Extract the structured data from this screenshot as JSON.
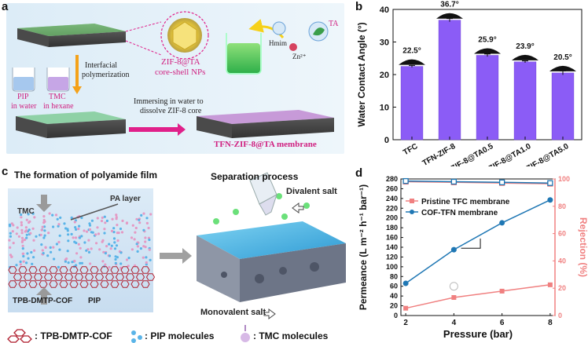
{
  "panel_a": {
    "label": "a",
    "nps_label_line1": "ZIF-8@TA",
    "nps_label_line2": "core-shell NPs",
    "hmim": "Hmim",
    "zn": "Zn²⁺",
    "ta": "TA",
    "interfacial_line1": "Interfacial",
    "interfacial_line2": "polymerization",
    "pip_line1": "PIP",
    "pip_line2": "in water",
    "tmc_line1": "TMC",
    "tmc_line2": "in hexane",
    "immersing_line1": "Immersing in water to",
    "immersing_line2": "dissolve ZIF-8 core",
    "membrane_label": "TFN-ZIF-8@TA membrane"
  },
  "panel_b": {
    "label": "b",
    "chart_data": {
      "type": "bar",
      "categories": [
        "TFC",
        "TFN-ZIF-8",
        "TFN-ZIF-8@TA0.5",
        "TFN-ZIF-8@TA1.0",
        "TFN-ZIF-8@TA5.0"
      ],
      "values": [
        22.5,
        36.7,
        25.9,
        23.9,
        20.5
      ],
      "errors": [
        0.3,
        0.5,
        0.4,
        0.3,
        0.6
      ],
      "data_labels": [
        "22.5°",
        "36.7°",
        "25.9°",
        "23.9°",
        "20.5°"
      ],
      "ylabel": "Water Contact Angle (°)",
      "ylim": [
        0,
        40
      ],
      "yticks": [
        "0",
        "10",
        "20",
        "30",
        "40"
      ],
      "bar_color": "#8b5cf6"
    }
  },
  "panel_c": {
    "label": "c",
    "title_left": "The formation of polyamide film",
    "title_right": "Separation process",
    "tmc": "TMC",
    "pa_layer": "PA layer",
    "cof": "TPB-DMTP-COF",
    "pip": "PIP",
    "divalent": "Divalent salt",
    "monovalent": "Monovalent salt",
    "legend_cof": ": TPB-DMTP-COF",
    "legend_pip": ": PIP molecules",
    "legend_tmc": ": TMC molecules"
  },
  "panel_d": {
    "label": "d",
    "chart_data": {
      "type": "line",
      "x": [
        2,
        4,
        6,
        8
      ],
      "xlabel": "Pressure (bar)",
      "ylabel_left": "Permeance (L m⁻² h⁻¹ bar⁻¹)",
      "ylabel_right": "Rejection (%)",
      "xlim": [
        1.8,
        8.2
      ],
      "ylim_left": [
        0,
        280
      ],
      "ylim_right": [
        0,
        100
      ],
      "xticks": [
        "2",
        "4",
        "6",
        "8"
      ],
      "yticks_left": [
        "0",
        "20",
        "40",
        "60",
        "80",
        "100",
        "120",
        "140",
        "160",
        "180",
        "200",
        "220",
        "240",
        "260",
        "280"
      ],
      "yticks_right": [
        "0",
        "20",
        "40",
        "60",
        "80",
        "100"
      ],
      "series": [
        {
          "name": "Pristine TFC membrane",
          "axis": "left",
          "values": [
            15,
            37,
            50,
            63
          ],
          "color": "#f08080",
          "marker": "square"
        },
        {
          "name": "COF-TFN membrane",
          "axis": "left",
          "values": [
            66,
            135,
            190,
            237
          ],
          "color": "#1f77b4",
          "marker": "circle"
        },
        {
          "axis": "right",
          "values": [
            98,
            97.5,
            97,
            96.5
          ],
          "color": "#f08080",
          "marker": "open-square"
        },
        {
          "axis": "right",
          "values": [
            98.5,
            98,
            97.5,
            97
          ],
          "color": "#1f77b4",
          "marker": "open-square"
        }
      ]
    }
  }
}
